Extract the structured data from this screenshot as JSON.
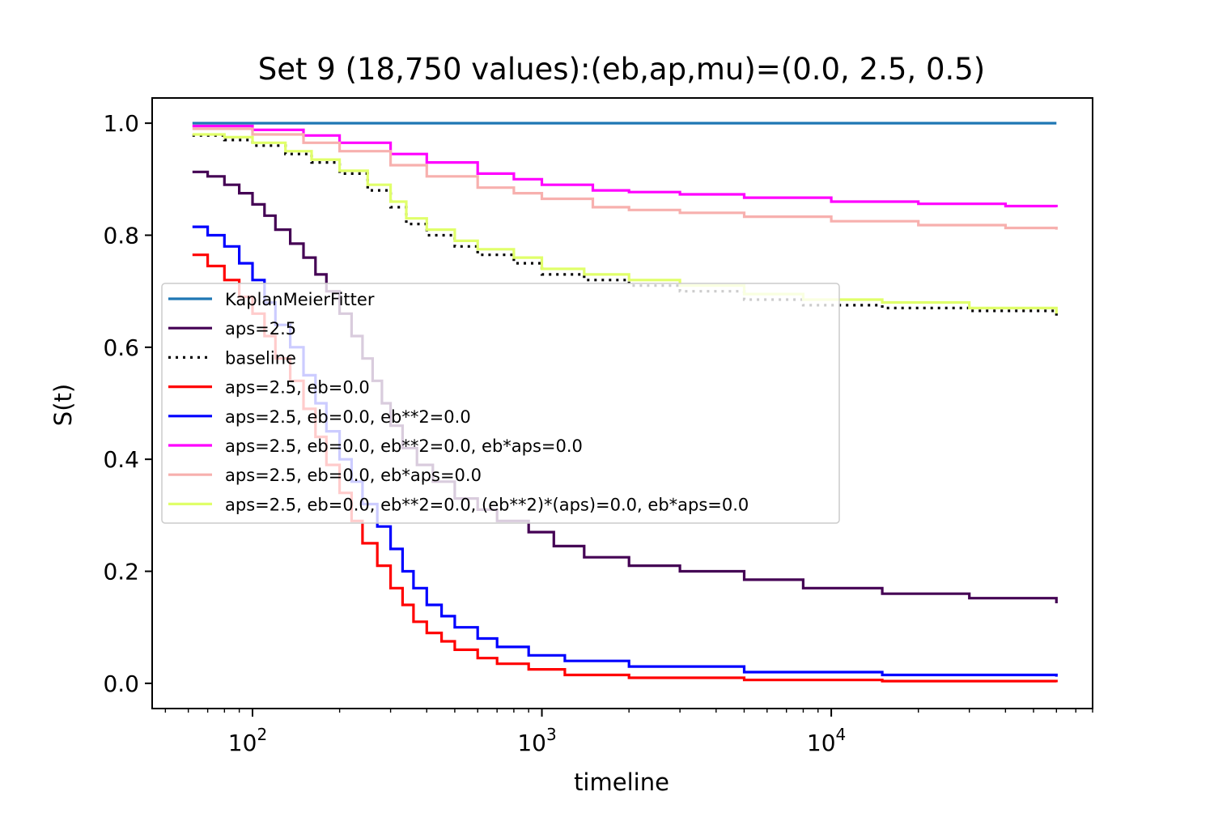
{
  "chart_data": {
    "type": "line",
    "title": "Set 9 (18,750 values):(eb,ap,mu)=(0.0, 2.5, 0.5)",
    "xlabel": "timeline",
    "ylabel": "S(t)",
    "xscale": "log",
    "xlim": [
      45,
      80000
    ],
    "ylim": [
      -0.045,
      1.045
    ],
    "x_ticks": [
      {
        "value": 100,
        "base": "10",
        "exp": "2"
      },
      {
        "value": 1000,
        "base": "10",
        "exp": "3"
      },
      {
        "value": 10000,
        "base": "10",
        "exp": "4"
      }
    ],
    "y_ticks": [
      {
        "value": 0.0,
        "label": "0.0"
      },
      {
        "value": 0.2,
        "label": "0.2"
      },
      {
        "value": 0.4,
        "label": "0.4"
      },
      {
        "value": 0.6,
        "label": "0.6"
      },
      {
        "value": 0.8,
        "label": "0.8"
      },
      {
        "value": 1.0,
        "label": "1.0"
      }
    ],
    "grid": false,
    "legend_position": "center-left",
    "series": [
      {
        "name": "KaplanMeierFitter",
        "color": "#1f77b4",
        "style": "solid",
        "step": true,
        "points": [
          [
            62,
            1.0
          ],
          [
            60000,
            1.0
          ]
        ]
      },
      {
        "name": "aps=2.5",
        "color": "#440154",
        "style": "solid",
        "step": true,
        "points": [
          [
            62,
            0.913
          ],
          [
            70,
            0.905
          ],
          [
            80,
            0.89
          ],
          [
            90,
            0.875
          ],
          [
            100,
            0.855
          ],
          [
            110,
            0.835
          ],
          [
            120,
            0.81
          ],
          [
            135,
            0.785
          ],
          [
            150,
            0.76
          ],
          [
            165,
            0.73
          ],
          [
            180,
            0.7
          ],
          [
            200,
            0.66
          ],
          [
            220,
            0.62
          ],
          [
            240,
            0.58
          ],
          [
            260,
            0.54
          ],
          [
            280,
            0.5
          ],
          [
            300,
            0.46
          ],
          [
            330,
            0.42
          ],
          [
            370,
            0.39
          ],
          [
            420,
            0.36
          ],
          [
            500,
            0.33
          ],
          [
            600,
            0.31
          ],
          [
            700,
            0.29
          ],
          [
            900,
            0.27
          ],
          [
            1100,
            0.245
          ],
          [
            1400,
            0.225
          ],
          [
            2000,
            0.21
          ],
          [
            3000,
            0.2
          ],
          [
            5000,
            0.185
          ],
          [
            8000,
            0.17
          ],
          [
            15000,
            0.16
          ],
          [
            30000,
            0.152
          ],
          [
            60000,
            0.143
          ]
        ]
      },
      {
        "name": "baseline",
        "color": "#000000",
        "style": "dotted",
        "step": true,
        "points": [
          [
            62,
            0.978
          ],
          [
            80,
            0.97
          ],
          [
            100,
            0.96
          ],
          [
            130,
            0.945
          ],
          [
            160,
            0.93
          ],
          [
            200,
            0.91
          ],
          [
            250,
            0.88
          ],
          [
            300,
            0.85
          ],
          [
            340,
            0.82
          ],
          [
            400,
            0.8
          ],
          [
            500,
            0.78
          ],
          [
            600,
            0.765
          ],
          [
            800,
            0.75
          ],
          [
            1000,
            0.73
          ],
          [
            1400,
            0.72
          ],
          [
            2000,
            0.71
          ],
          [
            3000,
            0.7
          ],
          [
            5000,
            0.685
          ],
          [
            8000,
            0.675
          ],
          [
            15000,
            0.67
          ],
          [
            30000,
            0.665
          ],
          [
            60000,
            0.65
          ]
        ]
      },
      {
        "name": "aps=2.5, eb=0.0",
        "color": "#ff0000",
        "step": true,
        "style": "solid",
        "points": [
          [
            62,
            0.765
          ],
          [
            70,
            0.745
          ],
          [
            80,
            0.72
          ],
          [
            90,
            0.69
          ],
          [
            100,
            0.66
          ],
          [
            110,
            0.62
          ],
          [
            120,
            0.58
          ],
          [
            135,
            0.54
          ],
          [
            150,
            0.49
          ],
          [
            165,
            0.44
          ],
          [
            180,
            0.39
          ],
          [
            200,
            0.34
          ],
          [
            220,
            0.29
          ],
          [
            240,
            0.25
          ],
          [
            270,
            0.21
          ],
          [
            300,
            0.17
          ],
          [
            330,
            0.14
          ],
          [
            360,
            0.11
          ],
          [
            400,
            0.09
          ],
          [
            450,
            0.075
          ],
          [
            500,
            0.06
          ],
          [
            600,
            0.045
          ],
          [
            700,
            0.035
          ],
          [
            900,
            0.025
          ],
          [
            1200,
            0.015
          ],
          [
            2000,
            0.01
          ],
          [
            5000,
            0.006
          ],
          [
            15000,
            0.004
          ],
          [
            60000,
            0.002
          ]
        ]
      },
      {
        "name": "aps=2.5, eb=0.0, eb**2=0.0",
        "color": "#0000ff",
        "style": "solid",
        "step": true,
        "points": [
          [
            62,
            0.815
          ],
          [
            70,
            0.8
          ],
          [
            80,
            0.78
          ],
          [
            90,
            0.75
          ],
          [
            100,
            0.72
          ],
          [
            110,
            0.68
          ],
          [
            120,
            0.64
          ],
          [
            135,
            0.6
          ],
          [
            150,
            0.55
          ],
          [
            165,
            0.5
          ],
          [
            180,
            0.45
          ],
          [
            200,
            0.4
          ],
          [
            220,
            0.36
          ],
          [
            240,
            0.32
          ],
          [
            270,
            0.28
          ],
          [
            300,
            0.24
          ],
          [
            330,
            0.2
          ],
          [
            360,
            0.17
          ],
          [
            400,
            0.14
          ],
          [
            450,
            0.12
          ],
          [
            500,
            0.1
          ],
          [
            600,
            0.08
          ],
          [
            700,
            0.065
          ],
          [
            900,
            0.05
          ],
          [
            1200,
            0.04
          ],
          [
            2000,
            0.03
          ],
          [
            5000,
            0.02
          ],
          [
            15000,
            0.015
          ],
          [
            60000,
            0.012
          ]
        ]
      },
      {
        "name": "aps=2.5, eb=0.0, eb**2=0.0, eb*aps=0.0",
        "color": "#ff00ff",
        "style": "solid",
        "step": true,
        "points": [
          [
            62,
            0.995
          ],
          [
            100,
            0.988
          ],
          [
            150,
            0.978
          ],
          [
            200,
            0.965
          ],
          [
            300,
            0.945
          ],
          [
            400,
            0.93
          ],
          [
            600,
            0.91
          ],
          [
            800,
            0.9
          ],
          [
            1000,
            0.89
          ],
          [
            1500,
            0.88
          ],
          [
            2000,
            0.877
          ],
          [
            3000,
            0.873
          ],
          [
            5000,
            0.867
          ],
          [
            10000,
            0.86
          ],
          [
            20000,
            0.856
          ],
          [
            40000,
            0.852
          ],
          [
            60000,
            0.85
          ]
        ]
      },
      {
        "name": "aps=2.5, eb=0.0, eb*aps=0.0",
        "color": "#f7b0ae",
        "style": "solid",
        "step": true,
        "points": [
          [
            62,
            0.99
          ],
          [
            100,
            0.98
          ],
          [
            150,
            0.965
          ],
          [
            200,
            0.95
          ],
          [
            300,
            0.925
          ],
          [
            400,
            0.905
          ],
          [
            600,
            0.885
          ],
          [
            800,
            0.875
          ],
          [
            1000,
            0.865
          ],
          [
            1500,
            0.85
          ],
          [
            2000,
            0.845
          ],
          [
            3000,
            0.84
          ],
          [
            5000,
            0.833
          ],
          [
            10000,
            0.825
          ],
          [
            20000,
            0.818
          ],
          [
            40000,
            0.813
          ],
          [
            60000,
            0.81
          ]
        ]
      },
      {
        "name": "aps=2.5, eb=0.0, eb**2=0.0, (eb**2)*(aps)=0.0, eb*aps=0.0",
        "color": "#e0ff6a",
        "style": "solid",
        "step": true,
        "points": [
          [
            62,
            0.98
          ],
          [
            80,
            0.975
          ],
          [
            100,
            0.965
          ],
          [
            130,
            0.95
          ],
          [
            160,
            0.935
          ],
          [
            200,
            0.915
          ],
          [
            250,
            0.89
          ],
          [
            300,
            0.86
          ],
          [
            340,
            0.83
          ],
          [
            400,
            0.81
          ],
          [
            500,
            0.79
          ],
          [
            600,
            0.775
          ],
          [
            800,
            0.76
          ],
          [
            1000,
            0.74
          ],
          [
            1400,
            0.73
          ],
          [
            2000,
            0.72
          ],
          [
            3000,
            0.71
          ],
          [
            5000,
            0.695
          ],
          [
            8000,
            0.685
          ],
          [
            15000,
            0.68
          ],
          [
            30000,
            0.67
          ],
          [
            60000,
            0.66
          ]
        ]
      }
    ]
  }
}
